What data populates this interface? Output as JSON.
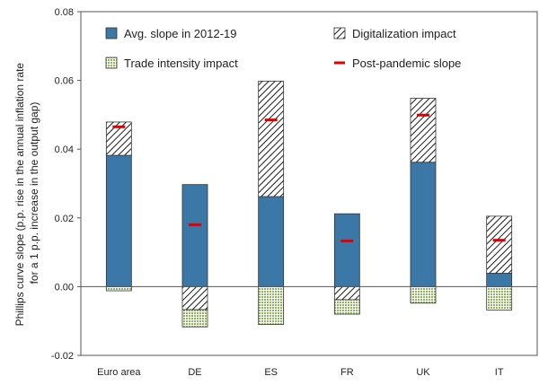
{
  "chart_data": {
    "type": "bar",
    "stacked": true,
    "ylabel": "Phillips curve slope (p.p. rise in the annual inflation rate for a 1 p.p. increase in the output gap)",
    "ylabel_lines": [
      "Phillips curve slope (p.p. rise in the annual inflation rate",
      "for a 1 p.p. increase in the output gap)"
    ],
    "ylim": [
      -0.02,
      0.08
    ],
    "yticks": [
      "-0.02",
      "0.00",
      "0.02",
      "0.04",
      "0.06",
      "0.08"
    ],
    "ytick_values": [
      -0.02,
      0.0,
      0.02,
      0.04,
      0.06,
      0.08
    ],
    "grid": false,
    "legend_position": "top",
    "categories": [
      "Euro area",
      "DE",
      "ES",
      "FR",
      "UK",
      "IT"
    ],
    "series": [
      {
        "name": "Avg. slope in 2012-19",
        "kind": "bar",
        "color": "#3b78a8",
        "values": [
          0.0382,
          0.0297,
          0.0262,
          0.0212,
          0.0362,
          0.0039
        ]
      },
      {
        "name": "Digitalization impact",
        "kind": "bar-hatched",
        "color": "#000000",
        "values": [
          0.0097,
          -0.0067,
          0.0336,
          -0.0038,
          0.0186,
          0.0166
        ]
      },
      {
        "name": "Trade intensity impact",
        "kind": "bar-dotted",
        "color": "#9cc06a",
        "values": [
          -0.0012,
          -0.005,
          -0.011,
          -0.0042,
          -0.0048,
          -0.0068
        ]
      },
      {
        "name": "Post-pandemic slope",
        "kind": "marker",
        "color": "#e00000",
        "values": [
          0.0465,
          0.018,
          0.0485,
          0.0133,
          0.0499,
          0.0135
        ]
      }
    ]
  }
}
